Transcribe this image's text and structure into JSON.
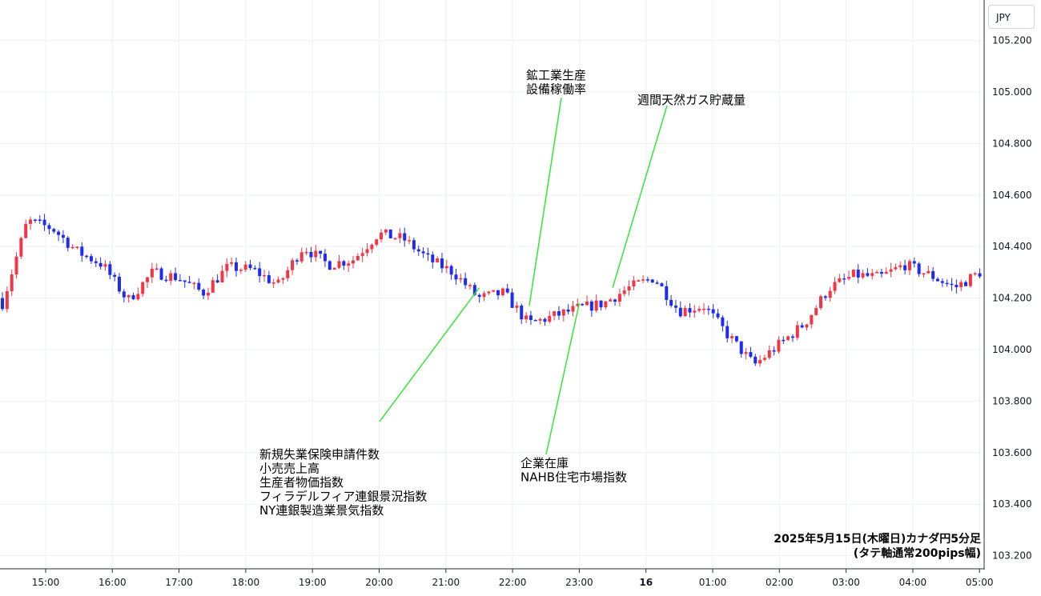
{
  "currency_label": "JPY",
  "caption": {
    "line1": "2025年5月15日(木曜日)カナダ円5分足",
    "line2": "(タテ軸通常200pips幅)"
  },
  "colors": {
    "up": "#f23645",
    "down": "#1f2bf0",
    "annotation_line": "#33e833",
    "grid": "#eef0f3",
    "axis": "#2a2e39"
  },
  "chart_data": {
    "type": "candlestick",
    "interval": "5m",
    "ylim": [
      103.15,
      105.28
    ],
    "y_ticks": [
      "105.200",
      "105.000",
      "104.800",
      "104.600",
      "104.400",
      "104.200",
      "104.000",
      "103.800",
      "103.600",
      "103.400",
      "103.200"
    ],
    "x_ticks": [
      {
        "label": "15:00",
        "bold": false
      },
      {
        "label": "16:00",
        "bold": false
      },
      {
        "label": "17:00",
        "bold": false
      },
      {
        "label": "18:00",
        "bold": false
      },
      {
        "label": "19:00",
        "bold": false
      },
      {
        "label": "20:00",
        "bold": false
      },
      {
        "label": "21:00",
        "bold": false
      },
      {
        "label": "22:00",
        "bold": false
      },
      {
        "label": "23:00",
        "bold": false
      },
      {
        "label": "16",
        "bold": true
      },
      {
        "label": "01:00",
        "bold": false
      },
      {
        "label": "02:00",
        "bold": false
      },
      {
        "label": "03:00",
        "bold": false
      },
      {
        "label": "04:00",
        "bold": false
      },
      {
        "label": "05:00",
        "bold": false
      }
    ],
    "anchors": [
      104.18,
      104.5,
      104.47,
      104.38,
      104.33,
      104.19,
      104.3,
      104.28,
      104.22,
      104.32,
      104.31,
      104.25,
      104.4,
      104.33,
      104.35,
      104.45,
      104.43,
      104.35,
      104.3,
      104.2,
      104.22,
      104.1,
      104.13,
      104.16,
      104.18,
      104.24,
      104.28,
      104.15,
      104.17,
      104.05,
      103.94,
      104.02,
      104.1,
      104.24,
      104.29,
      104.28,
      104.33,
      104.29,
      104.24,
      104.3
    ],
    "annotations": [
      {
        "id": "ann-claims",
        "lines": [
          "新規失業保険申請件数",
          "小売売上高",
          "生産者物価指数",
          "フィラデルフィア連銀景況指数",
          "NY連銀製造業景気指数"
        ],
        "anchor_price": 104.24,
        "anchor_slot": "21:30"
      },
      {
        "id": "ann-industrial",
        "lines": [
          "鉱工業生産",
          "設備稼働率"
        ],
        "anchor_price": 104.17,
        "anchor_slot": "22:15"
      },
      {
        "id": "ann-inventory",
        "lines": [
          "企業在庫",
          "NAHB住宅市場指数"
        ],
        "anchor_price": 104.18,
        "anchor_slot": "23:00"
      },
      {
        "id": "ann-gas",
        "lines": [
          "週間天然ガス貯蔵量"
        ],
        "anchor_price": 104.24,
        "anchor_slot": "23:30"
      }
    ]
  }
}
